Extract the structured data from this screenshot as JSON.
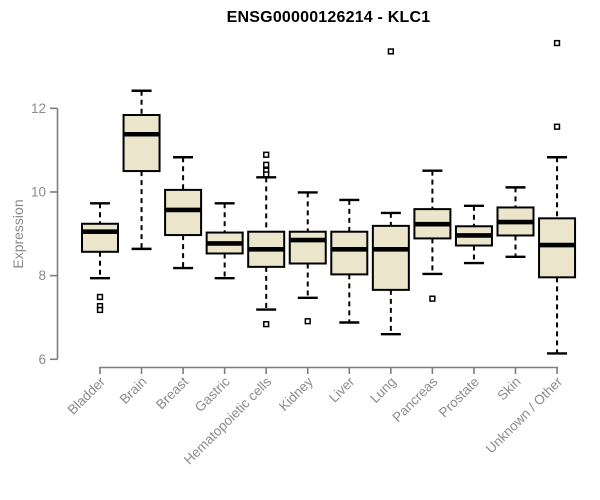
{
  "colors": {
    "box_fill": "#ebe5cb",
    "box_stroke": "#000000",
    "median_color": "#000000",
    "whisker_color": "#000000",
    "outlier_stroke": "#000000",
    "outlier_fill": "#ffffff",
    "axis_line": "#7e7e7e",
    "axis_text": "#8b8b8b",
    "title_color": "#000000",
    "background": "#ffffff"
  },
  "chart_data": {
    "type": "boxplot",
    "title": "ENSG00000126214 - KLC1",
    "ylabel": "Expression",
    "xlabel": "",
    "yticks": [
      6,
      8,
      10,
      12
    ],
    "ylim": [
      6,
      12
    ],
    "grid": false,
    "legend": false,
    "categories": [
      "Bladder",
      "Brain",
      "Breast",
      "Gastric",
      "Hematopoietic cells",
      "Kidney",
      "Liver",
      "Lung",
      "Pancreas",
      "Prostate",
      "Skin",
      "Unknown / Other"
    ],
    "boxes": [
      {
        "category": "Bladder",
        "whisker_low": 7.94,
        "q1": 8.57,
        "median": 9.05,
        "q3": 9.24,
        "whisker_high": 9.73,
        "outliers": [
          7.49,
          7.27,
          7.18
        ]
      },
      {
        "category": "Brain",
        "whisker_low": 8.64,
        "q1": 10.5,
        "median": 11.38,
        "q3": 11.84,
        "whisker_high": 12.42,
        "outliers": []
      },
      {
        "category": "Breast",
        "whisker_low": 8.18,
        "q1": 8.97,
        "median": 9.57,
        "q3": 10.05,
        "whisker_high": 10.83,
        "outliers": []
      },
      {
        "category": "Gastric",
        "whisker_low": 7.94,
        "q1": 8.53,
        "median": 8.77,
        "q3": 9.03,
        "whisker_high": 9.73,
        "outliers": []
      },
      {
        "category": "Hematopoietic cells",
        "whisker_low": 7.19,
        "q1": 8.21,
        "median": 8.63,
        "q3": 9.05,
        "whisker_high": 10.35,
        "outliers": [
          10.89,
          10.65,
          10.51,
          10.42,
          6.84
        ]
      },
      {
        "category": "Kidney",
        "whisker_low": 7.47,
        "q1": 8.29,
        "median": 8.85,
        "q3": 9.05,
        "whisker_high": 9.99,
        "outliers": [
          6.91
        ]
      },
      {
        "category": "Liver",
        "whisker_low": 6.88,
        "q1": 8.03,
        "median": 8.63,
        "q3": 9.05,
        "whisker_high": 9.81,
        "outliers": []
      },
      {
        "category": "Lung",
        "whisker_low": 6.6,
        "q1": 7.66,
        "median": 8.63,
        "q3": 9.19,
        "whisker_high": 9.5,
        "outliers": [
          13.36
        ]
      },
      {
        "category": "Pancreas",
        "whisker_low": 8.04,
        "q1": 8.89,
        "median": 9.23,
        "q3": 9.59,
        "whisker_high": 10.51,
        "outliers": [
          7.45
        ]
      },
      {
        "category": "Prostate",
        "whisker_low": 8.3,
        "q1": 8.72,
        "median": 8.96,
        "q3": 9.18,
        "whisker_high": 9.67,
        "outliers": []
      },
      {
        "category": "Skin",
        "whisker_low": 8.45,
        "q1": 8.96,
        "median": 9.28,
        "q3": 9.63,
        "whisker_high": 10.11,
        "outliers": []
      },
      {
        "category": "Unknown / Other",
        "whisker_low": 6.14,
        "q1": 7.96,
        "median": 8.73,
        "q3": 9.37,
        "whisker_high": 10.83,
        "outliers": [
          13.56,
          11.56
        ]
      }
    ]
  }
}
